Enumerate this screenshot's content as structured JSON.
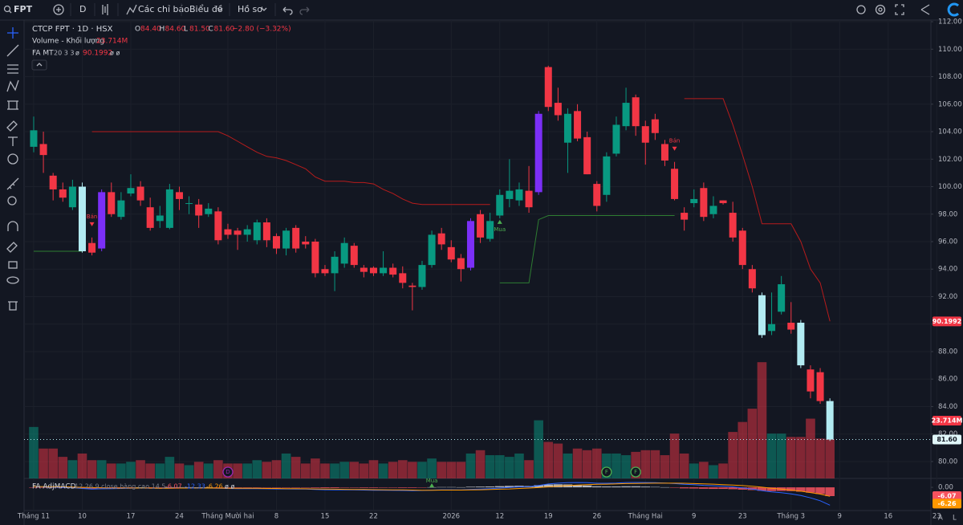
{
  "toolbar": {
    "symbol": "FPT",
    "interval": "D",
    "indicators": "Các chỉ báo",
    "chart": "Biểu đồ",
    "profile": "Hồ sơ"
  },
  "chart_data": {
    "type": "candlestick",
    "title": "CTCP FPT · 1D · HSX",
    "ohlc_header": [
      {
        "key": "O",
        "text": "84.40"
      },
      {
        "key": "H",
        "text": "84.60"
      },
      {
        "key": "L",
        "text": "81.50"
      },
      {
        "key": "C",
        "text": "81.60"
      }
    ],
    "change": "−2.80 (−3.32%)",
    "up_color": "#089981",
    "down_color": "#f23645",
    "highlights": [
      {
        "index": 5,
        "color": "#b2ebf2"
      },
      {
        "index": 7,
        "color": "#7b2ff7"
      },
      {
        "index": 45,
        "color": "#7b2ff7"
      },
      {
        "index": 52,
        "color": "#7b2ff7"
      },
      {
        "index": 75,
        "color": "#b2ebf2"
      },
      {
        "index": 79,
        "color": "#b2ebf2"
      },
      {
        "index": 82,
        "color": "#b2ebf2"
      }
    ],
    "open": [
      102.9,
      103.1,
      100.8,
      99.8,
      98.5,
      100.0,
      95.9,
      95.5,
      99.6,
      97.8,
      99.5,
      100.0,
      98.5,
      97.5,
      97.0,
      99.6,
      98.8,
      98.7,
      98.0,
      98.2,
      96.9,
      96.8,
      96.5,
      96.1,
      97.4,
      96.4,
      95.5,
      97.0,
      96.0,
      96.0,
      94.0,
      93.7,
      94.4,
      95.7,
      94.1,
      94.1,
      93.7,
      94.1,
      93.7,
      92.8,
      92.7,
      94.3,
      96.6,
      95.6,
      94.8,
      94.1,
      98.0,
      96.2,
      97.9,
      99.1,
      99.0,
      99.7,
      99.6,
      108.7,
      106.1,
      103.2,
      105.5,
      103.6,
      100.2,
      99.4,
      102.4,
      104.4,
      106.5,
      104.4,
      104.9,
      103.1,
      101.3,
      98.1,
      98.8,
      99.9,
      98.0,
      99.0,
      98.1,
      96.8,
      94.0,
      92.1,
      89.5,
      90.9,
      90.1,
      90.1,
      86.7,
      86.5,
      84.4
    ],
    "high": [
      105.1,
      104.0,
      101.0,
      100.3,
      100.5,
      100.3,
      96.3,
      99.8,
      100.3,
      99.6,
      100.9,
      100.4,
      99.2,
      98.6,
      100.2,
      100.0,
      99.3,
      99.1,
      98.8,
      98.5,
      97.3,
      97.0,
      97.2,
      97.6,
      97.7,
      96.6,
      97.0,
      97.2,
      96.4,
      96.2,
      94.3,
      95.3,
      96.3,
      95.9,
      94.3,
      94.2,
      95.3,
      94.4,
      94.2,
      93.0,
      94.6,
      96.8,
      97.0,
      96.1,
      95.1,
      97.7,
      98.3,
      98.1,
      99.8,
      102.0,
      100.3,
      101.5,
      105.5,
      108.8,
      107.2,
      105.7,
      106.0,
      104.0,
      100.4,
      102.5,
      105.1,
      107.2,
      106.7,
      104.8,
      105.3,
      103.4,
      101.8,
      98.5,
      99.8,
      100.3,
      99.3,
      99.0,
      98.9,
      97.0,
      94.3,
      92.3,
      92.3,
      93.5,
      91.6,
      90.3,
      87.0,
      86.8,
      84.6
    ],
    "low": [
      102.5,
      101.0,
      99.0,
      98.9,
      98.3,
      95.2,
      95.0,
      95.3,
      97.8,
      97.6,
      99.3,
      98.6,
      96.8,
      97.0,
      96.9,
      98.3,
      98.0,
      97.0,
      97.8,
      95.8,
      96.2,
      95.4,
      96.0,
      95.8,
      95.6,
      95.1,
      95.0,
      95.2,
      95.5,
      93.4,
      93.5,
      92.4,
      94.1,
      94.1,
      93.4,
      93.5,
      93.5,
      93.4,
      92.6,
      91.0,
      92.5,
      94.1,
      95.4,
      94.5,
      93.1,
      93.9,
      95.9,
      96.0,
      97.7,
      98.5,
      98.6,
      98.1,
      99.4,
      105.5,
      104.8,
      101.0,
      103.3,
      100.9,
      98.2,
      98.9,
      102.2,
      104.1,
      103.7,
      101.6,
      103.4,
      101.5,
      99.0,
      96.8,
      98.5,
      97.5,
      97.7,
      98.7,
      96.0,
      94.0,
      92.3,
      89.0,
      89.2,
      90.7,
      89.3,
      86.8,
      84.6,
      84.2,
      81.5
    ],
    "close": [
      104.1,
      102.3,
      99.8,
      99.2,
      100.0,
      95.3,
      95.2,
      99.6,
      98.0,
      99.0,
      99.9,
      99.0,
      97.0,
      97.9,
      99.8,
      99.1,
      98.8,
      97.9,
      98.4,
      96.1,
      96.5,
      96.5,
      96.9,
      97.4,
      96.1,
      95.5,
      96.8,
      95.5,
      95.8,
      93.7,
      93.7,
      94.9,
      95.9,
      94.3,
      93.8,
      93.7,
      94.1,
      93.6,
      93.0,
      92.7,
      94.3,
      96.5,
      95.8,
      94.7,
      94.0,
      97.5,
      96.3,
      97.5,
      99.4,
      99.7,
      99.8,
      98.5,
      105.3,
      105.8,
      105.2,
      105.3,
      103.5,
      100.9,
      98.6,
      102.2,
      104.5,
      106.1,
      104.4,
      103.2,
      103.9,
      101.9,
      99.1,
      97.6,
      99.1,
      97.8,
      98.6,
      98.8,
      96.3,
      94.3,
      92.6,
      89.2,
      90.0,
      92.9,
      89.6,
      87.0,
      85.1,
      84.4,
      81.6
    ],
    "last_price_label": "81.60",
    "xlim": [
      -0.99,
      92.4
    ],
    "ylim": [
      78.77,
      112.12
    ],
    "grid": true,
    "yticks": [
      {
        "value": 80,
        "label": "80.00"
      },
      {
        "value": 82,
        "label": "82.00"
      },
      {
        "value": 84,
        "label": "84.00"
      },
      {
        "value": 86,
        "label": "86.00"
      },
      {
        "value": 88,
        "label": "88.00"
      },
      {
        "value": 90,
        "label": "90.00"
      },
      {
        "value": 92,
        "label": "92.00"
      },
      {
        "value": 94,
        "label": "94.00"
      },
      {
        "value": 96,
        "label": "96.00"
      },
      {
        "value": 98,
        "label": "98.00"
      },
      {
        "value": 100,
        "label": "100.00"
      },
      {
        "value": 102,
        "label": "102.00"
      },
      {
        "value": 104,
        "label": "104.00"
      },
      {
        "value": 106,
        "label": "106.00"
      },
      {
        "value": 108,
        "label": "108.00"
      },
      {
        "value": 110,
        "label": "110.00"
      },
      {
        "value": 112,
        "label": "112.00"
      }
    ],
    "xticks": [
      {
        "value": 0,
        "label": "Tháng 11"
      },
      {
        "value": 5,
        "label": "10"
      },
      {
        "value": 10,
        "label": "17"
      },
      {
        "value": 15,
        "label": "24"
      },
      {
        "value": 20,
        "label": "Tháng Mười hai"
      },
      {
        "value": 25,
        "label": "8"
      },
      {
        "value": 30,
        "label": "15"
      },
      {
        "value": 35,
        "label": "22"
      },
      {
        "value": 43,
        "label": "2026"
      },
      {
        "value": 48,
        "label": "12"
      },
      {
        "value": 53,
        "label": "19"
      },
      {
        "value": 58,
        "label": "26"
      },
      {
        "value": 63,
        "label": "Tháng Hai"
      },
      {
        "value": 68,
        "label": "9"
      },
      {
        "value": 73,
        "label": "23"
      },
      {
        "value": 78,
        "label": "Tháng 3"
      },
      {
        "value": 83,
        "label": "9"
      },
      {
        "value": 88,
        "label": "16"
      },
      {
        "value": 93,
        "label": "23"
      }
    ],
    "volume": {
      "name": "Volume - Khối lượng",
      "last_label": "23.714M",
      "ylim": [
        0,
        276
      ],
      "values": [
        31,
        18,
        18,
        13,
        11,
        15,
        11,
        11,
        9,
        9,
        10,
        11,
        9,
        9,
        13,
        9,
        8,
        10,
        9,
        11,
        9,
        9,
        9,
        11,
        10,
        11,
        15,
        13,
        9,
        12,
        9,
        9,
        10,
        10,
        9,
        11,
        9,
        10,
        11,
        10,
        10,
        12,
        10,
        10,
        10,
        15,
        17,
        14,
        14,
        13,
        15,
        11,
        35,
        22,
        21,
        15,
        18,
        17,
        18,
        15,
        15,
        14,
        16,
        17,
        17,
        14,
        27,
        15,
        9,
        10,
        8,
        9,
        28,
        34,
        42,
        70,
        27,
        27,
        25,
        25,
        36,
        24,
        23.714
      ]
    },
    "stop_line": {
      "name": "FA MT",
      "params": "20 3 3",
      "symbol": "ø",
      "last_label": "90.1992",
      "trailing": "ø ø",
      "upper_color": "#b71c1c",
      "lower_color": "#2e7d32",
      "upper": [
        null,
        null,
        null,
        null,
        null,
        null,
        104.0,
        104.0,
        104.0,
        104.0,
        104.0,
        104.0,
        104.0,
        104.0,
        104.0,
        104.0,
        104.0,
        104.0,
        104.0,
        104.0,
        103.7,
        103.3,
        102.9,
        102.5,
        102.2,
        102.1,
        101.9,
        101.6,
        101.3,
        100.7,
        100.4,
        100.4,
        100.4,
        100.3,
        100.3,
        100.2,
        99.8,
        99.5,
        99.1,
        98.8,
        98.7,
        98.7,
        98.7,
        98.7,
        98.7,
        98.7,
        98.7,
        98.7,
        null,
        null,
        null,
        null,
        null,
        null,
        null,
        null,
        null,
        null,
        null,
        null,
        null,
        null,
        null,
        null,
        null,
        null,
        null,
        106.4,
        106.4,
        106.4,
        106.4,
        106.4,
        104.5,
        102.3,
        100.0,
        97.3,
        97.3,
        97.3,
        97.3,
        96.0,
        94.0,
        93.0,
        90.1992
      ],
      "lower": [
        95.3,
        95.3,
        95.3,
        95.3,
        95.3,
        95.3,
        null,
        null,
        null,
        null,
        null,
        null,
        null,
        null,
        null,
        null,
        null,
        null,
        null,
        null,
        null,
        null,
        null,
        null,
        null,
        null,
        null,
        null,
        null,
        null,
        null,
        null,
        null,
        null,
        null,
        null,
        null,
        null,
        null,
        null,
        null,
        null,
        null,
        null,
        null,
        null,
        null,
        null,
        93.0,
        93.0,
        93.0,
        93.0,
        97.6,
        97.9,
        97.9,
        97.9,
        97.9,
        97.9,
        97.9,
        97.9,
        97.9,
        97.9,
        97.9,
        97.9,
        97.9,
        97.9,
        97.9,
        null,
        null,
        null,
        null,
        null,
        null,
        null,
        null,
        null,
        null,
        null,
        null,
        null,
        null,
        null,
        null
      ]
    },
    "signals": [
      {
        "index": 6,
        "label": "Bán",
        "side": "sell"
      },
      {
        "index": 48,
        "label": "Mua",
        "side": "buy"
      },
      {
        "index": 66,
        "label": "Bán",
        "side": "sell"
      }
    ],
    "events": [
      {
        "index": 20,
        "label": "D",
        "color": "#9c27b0"
      },
      {
        "index": 59,
        "label": "F",
        "color": "#4caf50"
      },
      {
        "index": 62,
        "label": "F",
        "color": "#4caf50"
      }
    ],
    "macd": {
      "name": "FA AdjMACD",
      "params": "12 26 9 close hàng cao 14 5",
      "trailing": "ø ø",
      "ylim": [
        -18.3,
        5.6
      ],
      "yticks": [
        {
          "value": 0,
          "label": "0.00"
        }
      ],
      "macd_color": "#2962ff",
      "signal_color": "#ff9800",
      "hist_up_color": "#d1d4dc",
      "hist_down_color": "#f7525f",
      "signal_marks": [
        {
          "index": 41,
          "label": "Mua"
        }
      ],
      "macd": [
        0.5,
        0.3,
        0.1,
        -0.1,
        -0.3,
        -0.8,
        -1.2,
        -1.0,
        -0.9,
        -0.8,
        -0.6,
        -0.5,
        -0.6,
        -0.7,
        -0.5,
        -0.4,
        -0.4,
        -0.5,
        -0.5,
        -0.7,
        -0.8,
        -0.9,
        -0.9,
        -0.9,
        -1.0,
        -1.1,
        -1.1,
        -1.2,
        -1.2,
        -1.5,
        -1.7,
        -1.8,
        -1.7,
        -1.8,
        -1.9,
        -2.0,
        -2.0,
        -2.1,
        -2.2,
        -2.3,
        -2.2,
        -1.9,
        -1.7,
        -1.7,
        -1.8,
        -1.4,
        -1.2,
        -0.9,
        -0.5,
        -0.1,
        0.3,
        0.4,
        1.3,
        2.3,
        2.9,
        3.2,
        3.3,
        3.2,
        2.8,
        2.8,
        3.0,
        3.3,
        3.4,
        3.3,
        3.2,
        3.0,
        2.6,
        2.1,
        1.8,
        1.4,
        1.1,
        0.8,
        0.3,
        -0.4,
        -1.2,
        -2.3,
        -3.2,
        -3.7,
        -4.5,
        -5.7,
        -7.3,
        -9.3,
        -12.33
      ],
      "signal": [
        0.6,
        0.5,
        0.4,
        0.3,
        0.2,
        0.0,
        -0.2,
        -0.4,
        -0.5,
        -0.5,
        -0.5,
        -0.5,
        -0.5,
        -0.6,
        -0.6,
        -0.5,
        -0.5,
        -0.5,
        -0.5,
        -0.5,
        -0.6,
        -0.6,
        -0.7,
        -0.7,
        -0.8,
        -0.8,
        -0.9,
        -0.9,
        -1.0,
        -1.1,
        -1.2,
        -1.3,
        -1.4,
        -1.5,
        -1.5,
        -1.6,
        -1.7,
        -1.8,
        -1.8,
        -1.9,
        -2.0,
        -2.0,
        -1.9,
        -1.9,
        -1.9,
        -1.8,
        -1.7,
        -1.5,
        -1.3,
        -1.1,
        -0.8,
        -0.5,
        -0.2,
        0.3,
        0.8,
        1.2,
        1.6,
        1.9,
        2.1,
        2.2,
        2.4,
        2.6,
        2.7,
        2.8,
        2.9,
        2.9,
        2.9,
        2.8,
        2.6,
        2.4,
        2.2,
        1.9,
        1.6,
        1.2,
        0.7,
        0.1,
        -0.6,
        -1.2,
        -1.9,
        -2.7,
        -3.6,
        -4.7,
        -6.26
      ],
      "histogram": [
        -0.1,
        -0.2,
        -0.3,
        -0.4,
        -0.5,
        -0.8,
        -1.0,
        -0.6,
        -0.4,
        -0.3,
        -0.1,
        0,
        -0.1,
        -0.1,
        0.1,
        0.1,
        0.1,
        0,
        0,
        -0.2,
        -0.2,
        -0.3,
        -0.2,
        -0.2,
        -0.2,
        -0.3,
        -0.2,
        -0.3,
        -0.2,
        -0.4,
        -0.5,
        -0.5,
        -0.3,
        -0.3,
        -0.4,
        -0.4,
        -0.3,
        -0.3,
        -0.4,
        -0.4,
        -0.2,
        0.1,
        0.2,
        0.2,
        0.1,
        0.4,
        0.5,
        0.6,
        0.8,
        1.0,
        1.1,
        0.9,
        1.5,
        2.0,
        2.1,
        2.0,
        1.7,
        1.3,
        0.7,
        0.6,
        0.6,
        0.7,
        0.7,
        0.5,
        0.3,
        0.1,
        -0.3,
        -0.7,
        -0.8,
        -1.0,
        -1.1,
        -1.1,
        -1.3,
        -1.6,
        -1.9,
        -2.4,
        -2.6,
        -2.5,
        -2.6,
        -3.0,
        -3.7,
        -4.6,
        -6.07
      ]
    }
  }
}
